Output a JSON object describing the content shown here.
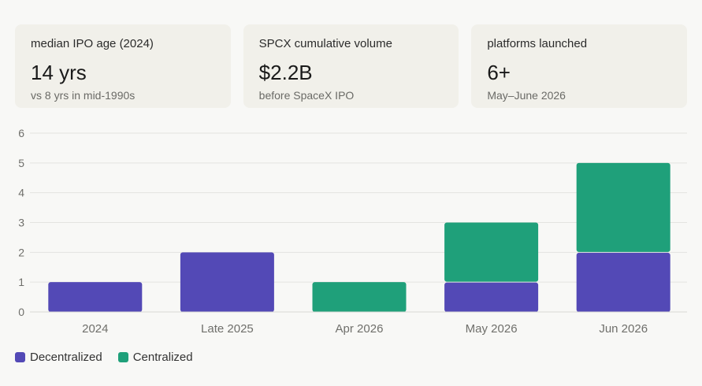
{
  "cards": [
    {
      "label": "median IPO age (2024)",
      "value": "14 yrs",
      "sub": "vs 8 yrs in mid-1990s"
    },
    {
      "label": "SPCX cumulative volume",
      "value": "$2.2B",
      "sub": "before SpaceX IPO"
    },
    {
      "label": "platforms launched",
      "value": "6+",
      "sub": "May–June 2026"
    }
  ],
  "chart_data": {
    "type": "bar",
    "stacked": true,
    "categories": [
      "2024",
      "Late 2025",
      "Apr 2026",
      "May 2026",
      "Jun 2026"
    ],
    "series": [
      {
        "name": "Decentralized",
        "color": "#5349b6",
        "values": [
          1,
          2,
          0,
          1,
          2
        ]
      },
      {
        "name": "Centralized",
        "color": "#1fa07a",
        "values": [
          0,
          0,
          1,
          2,
          3
        ]
      }
    ],
    "ylim": [
      0,
      6
    ],
    "yticks": [
      "0",
      "1",
      "2",
      "3",
      "4",
      "5",
      "6"
    ],
    "grid": true,
    "legend_position": "bottom-left"
  },
  "colors": {
    "decentralized": "#5349b6",
    "centralized": "#1fa07a",
    "grid": "#e4e4e0",
    "axis_text": "#6f6f6b"
  }
}
